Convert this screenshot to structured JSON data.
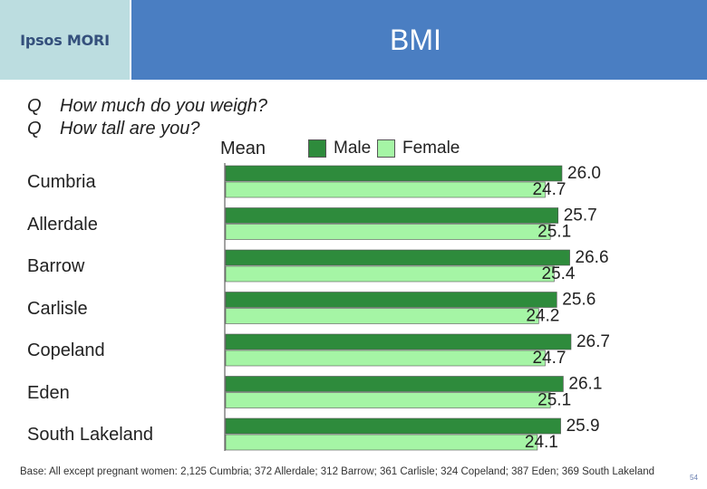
{
  "header": {
    "logo_text": "Ipsos MORI",
    "title": "BMI"
  },
  "questions": [
    {
      "marker": "Q",
      "text": "How much do you weigh?"
    },
    {
      "marker": "Q",
      "text": "How tall are you?"
    }
  ],
  "colors": {
    "male": "#2e8b3c",
    "female": "#a5f5a5",
    "header_bar": "#4a7ec2",
    "logo_bg": "#bcdde0"
  },
  "chart_data": {
    "type": "bar",
    "orientation": "horizontal",
    "measure_label": "Mean",
    "categories": [
      "Cumbria",
      "Allerdale",
      "Barrow",
      "Carlisle",
      "Copeland",
      "Eden",
      "South Lakeland"
    ],
    "series": [
      {
        "name": "Male",
        "values": [
          26.0,
          25.7,
          26.6,
          25.6,
          26.7,
          26.1,
          25.9
        ]
      },
      {
        "name": "Female",
        "values": [
          24.7,
          25.1,
          25.4,
          24.2,
          24.7,
          25.1,
          24.1
        ]
      }
    ],
    "value_labels": {
      "Male": [
        "26.0",
        "25.7",
        "26.6",
        "25.6",
        "26.7",
        "26.1",
        "25.9"
      ],
      "Female": [
        "24.7",
        "25.1",
        "25.4",
        "24.2",
        "24.7",
        "25.1",
        "24.1"
      ]
    },
    "legend_position": "top",
    "grid": false
  },
  "footnote": "Base: All except pregnant women: 2,125 Cumbria; 372 Allerdale; 312 Barrow; 361 Carlisle; 324 Copeland; 387 Eden; 369 South Lakeland",
  "page_number": "54"
}
